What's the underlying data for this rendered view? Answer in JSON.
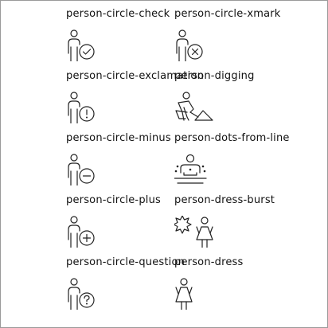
{
  "icons": [
    {
      "label": "person-circle-check",
      "icon": "person-circle-check-icon"
    },
    {
      "label": "person-circle-xmark",
      "icon": "person-circle-xmark-icon"
    },
    {
      "label": "person-circle-exclamation",
      "icon": "person-circle-exclamation-icon"
    },
    {
      "label": "person-digging",
      "icon": "person-digging-icon"
    },
    {
      "label": "person-circle-minus",
      "icon": "person-circle-minus-icon"
    },
    {
      "label": "person-dots-from-line",
      "icon": "person-dots-from-line-icon"
    },
    {
      "label": "person-circle-plus",
      "icon": "person-circle-plus-icon"
    },
    {
      "label": "person-dress-burst",
      "icon": "person-dress-burst-icon"
    },
    {
      "label": "person-circle-question",
      "icon": "person-circle-question-icon"
    },
    {
      "label": "person-dress",
      "icon": "person-dress-icon"
    }
  ],
  "colors": {
    "stroke": "#222222",
    "text": "#111111",
    "background": "#ffffff",
    "border": "#9a9a9a"
  }
}
